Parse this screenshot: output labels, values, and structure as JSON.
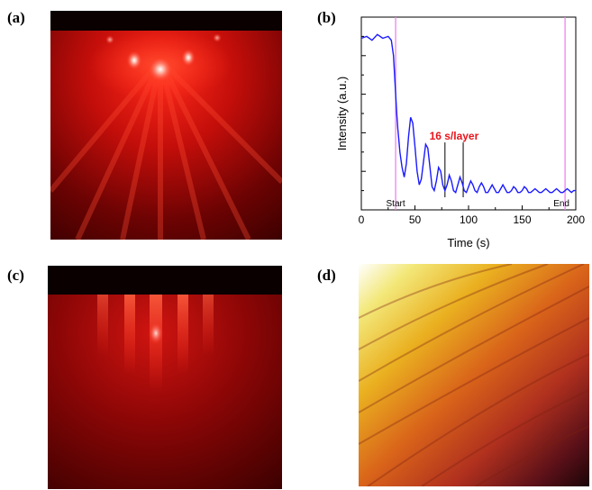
{
  "panels": {
    "a": "(a)",
    "b": "(b)",
    "c": "(c)",
    "d": "(d)"
  },
  "colors": {
    "rheed_glow": "#ff2a1a",
    "rheed_bg": "#3a0000",
    "afm_high": "#f0e040",
    "afm_mid": "#d24a1a",
    "afm_low": "#1a0508",
    "trace": "#1a1aff",
    "marker_line": "#ee82ee",
    "annotation": "#e8141b"
  },
  "chart_data": {
    "type": "line",
    "title": "",
    "xlabel": "Time (s)",
    "ylabel": "Intensity (a.u.)",
    "xlim": [
      0,
      200
    ],
    "ylim": [
      0,
      1
    ],
    "xticks": [
      0,
      50,
      100,
      150,
      200
    ],
    "grid": false,
    "series": [
      {
        "x": [
          0,
          5,
          10,
          15,
          20,
          25,
          28,
          30,
          31,
          32,
          33,
          34,
          35,
          36,
          38,
          40,
          42,
          44,
          46,
          48,
          50,
          52,
          54,
          56,
          58,
          60,
          62,
          64,
          66,
          68,
          70,
          72,
          74,
          76,
          78,
          80,
          82,
          84,
          86,
          88,
          90,
          92,
          94,
          96,
          98,
          100,
          102,
          104,
          106,
          108,
          110,
          112,
          114,
          116,
          118,
          120,
          122,
          124,
          126,
          128,
          130,
          132,
          134,
          136,
          138,
          140,
          142,
          144,
          146,
          148,
          150,
          152,
          154,
          156,
          158,
          160,
          162,
          164,
          166,
          168,
          170,
          172,
          174,
          176,
          178,
          180,
          182,
          184,
          186,
          188,
          190,
          192,
          194,
          196,
          198,
          200
        ],
        "y": [
          0.89,
          0.9,
          0.88,
          0.91,
          0.89,
          0.9,
          0.88,
          0.8,
          0.7,
          0.6,
          0.5,
          0.42,
          0.36,
          0.3,
          0.22,
          0.17,
          0.24,
          0.38,
          0.48,
          0.45,
          0.33,
          0.2,
          0.13,
          0.16,
          0.25,
          0.34,
          0.32,
          0.22,
          0.12,
          0.1,
          0.15,
          0.22,
          0.2,
          0.13,
          0.1,
          0.13,
          0.18,
          0.15,
          0.1,
          0.09,
          0.13,
          0.17,
          0.14,
          0.1,
          0.09,
          0.12,
          0.15,
          0.13,
          0.1,
          0.09,
          0.12,
          0.14,
          0.12,
          0.09,
          0.09,
          0.11,
          0.13,
          0.11,
          0.09,
          0.09,
          0.11,
          0.13,
          0.11,
          0.09,
          0.09,
          0.1,
          0.12,
          0.11,
          0.09,
          0.09,
          0.1,
          0.12,
          0.11,
          0.09,
          0.09,
          0.1,
          0.11,
          0.1,
          0.09,
          0.09,
          0.1,
          0.11,
          0.1,
          0.09,
          0.09,
          0.1,
          0.11,
          0.1,
          0.09,
          0.09,
          0.1,
          0.11,
          0.1,
          0.09,
          0.1,
          0.1
        ]
      }
    ],
    "markers": [
      {
        "x": 32,
        "label": "Start"
      },
      {
        "x": 190,
        "label": "End"
      }
    ],
    "annotation": {
      "text": "16 s/layer",
      "lines_x": [
        78,
        95
      ]
    }
  }
}
